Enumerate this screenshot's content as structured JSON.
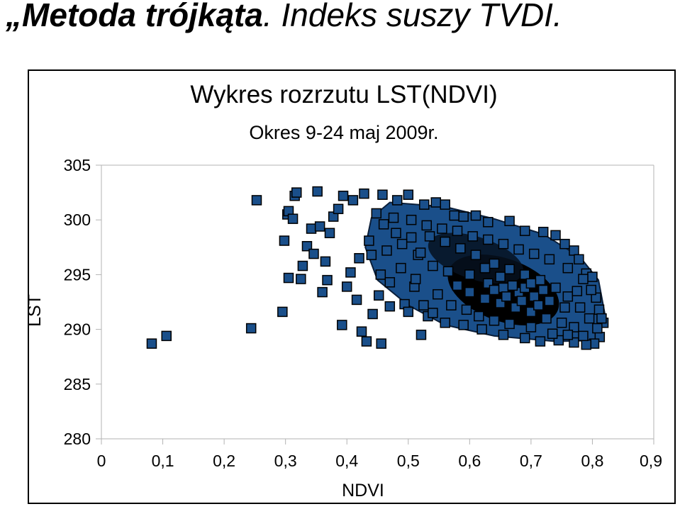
{
  "slide": {
    "title_emphasis": "„Metoda trójkąta",
    "title_rest": ". Indeks suszy TVDI."
  },
  "chart_data": {
    "type": "scatter",
    "title": "Wykres rozrzutu LST(NDVI)",
    "subtitle": "Okres 9-24 maj 2009r.",
    "xlabel": "NDVI",
    "ylabel": "LST",
    "xlim": [
      0,
      0.9
    ],
    "ylim": [
      280,
      305
    ],
    "x_ticks": [
      0,
      0.1,
      0.2,
      0.3,
      0.4,
      0.5,
      0.6,
      0.7,
      0.8,
      0.9
    ],
    "x_tick_labels": [
      "0",
      "0,1",
      "0,2",
      "0,3",
      "0,4",
      "0,5",
      "0,6",
      "0,7",
      "0,8",
      "0,9"
    ],
    "y_ticks": [
      280,
      285,
      290,
      295,
      300,
      305
    ],
    "y_tick_labels": [
      "280",
      "285",
      "290",
      "295",
      "300",
      "305"
    ],
    "grid": {
      "horizontal": false,
      "vertical": false
    },
    "legend": "none",
    "marker": {
      "shape": "square",
      "fill": "#1a4f8a",
      "stroke": "#000000"
    },
    "points": [
      [
        0.082,
        288.7
      ],
      [
        0.106,
        289.4
      ],
      [
        0.244,
        290.1
      ],
      [
        0.253,
        301.8
      ],
      [
        0.295,
        291.6
      ],
      [
        0.298,
        298.1
      ],
      [
        0.303,
        300.5
      ],
      [
        0.305,
        300.8
      ],
      [
        0.305,
        294.7
      ],
      [
        0.312,
        300.1
      ],
      [
        0.315,
        302.2
      ],
      [
        0.318,
        302.5
      ],
      [
        0.325,
        294.6
      ],
      [
        0.328,
        295.8
      ],
      [
        0.335,
        297.6
      ],
      [
        0.342,
        299.2
      ],
      [
        0.346,
        296.9
      ],
      [
        0.352,
        302.6
      ],
      [
        0.356,
        299.4
      ],
      [
        0.36,
        293.4
      ],
      [
        0.365,
        296.2
      ],
      [
        0.368,
        294.5
      ],
      [
        0.372,
        298.8
      ],
      [
        0.378,
        300.3
      ],
      [
        0.386,
        301.0
      ],
      [
        0.392,
        290.4
      ],
      [
        0.394,
        302.2
      ],
      [
        0.4,
        293.9
      ],
      [
        0.406,
        295.2
      ],
      [
        0.41,
        301.8
      ],
      [
        0.416,
        292.7
      ],
      [
        0.42,
        296.5
      ],
      [
        0.424,
        289.8
      ],
      [
        0.428,
        302.4
      ],
      [
        0.432,
        288.9
      ],
      [
        0.436,
        298.1
      ],
      [
        0.442,
        291.4
      ],
      [
        0.448,
        300.6
      ],
      [
        0.452,
        293.1
      ],
      [
        0.456,
        288.7
      ],
      [
        0.458,
        302.3
      ],
      [
        0.465,
        297.2
      ],
      [
        0.47,
        292.1
      ],
      [
        0.476,
        300.2
      ],
      [
        0.482,
        301.8
      ],
      [
        0.488,
        295.6
      ],
      [
        0.494,
        292.3
      ],
      [
        0.5,
        302.3
      ],
      [
        0.505,
        298.4
      ],
      [
        0.51,
        293.9
      ],
      [
        0.516,
        296.8
      ],
      [
        0.521,
        289.5
      ],
      [
        0.526,
        301.4
      ],
      [
        0.532,
        291.2
      ],
      [
        0.545,
        301.6
      ],
      [
        0.56,
        301.4
      ],
      [
        0.575,
        300.4
      ],
      [
        0.59,
        300.3
      ],
      [
        0.61,
        300.4
      ],
      [
        0.63,
        299.8
      ],
      [
        0.665,
        299.9
      ],
      [
        0.69,
        299.0
      ],
      [
        0.72,
        298.9
      ],
      [
        0.74,
        298.6
      ],
      [
        0.755,
        297.8
      ],
      [
        0.77,
        297.2
      ],
      [
        0.778,
        296.4
      ],
      [
        0.79,
        295.1
      ],
      [
        0.8,
        294.8
      ],
      [
        0.806,
        292.9
      ],
      [
        0.811,
        291.8
      ],
      [
        0.818,
        290.6
      ],
      [
        0.812,
        289.3
      ],
      [
        0.803,
        288.7
      ],
      [
        0.79,
        288.6
      ],
      [
        0.77,
        288.8
      ],
      [
        0.745,
        289.0
      ],
      [
        0.715,
        288.9
      ],
      [
        0.69,
        289.2
      ],
      [
        0.655,
        289.5
      ],
      [
        0.62,
        290.0
      ],
      [
        0.59,
        290.4
      ],
      [
        0.56,
        290.6
      ],
      [
        0.54,
        291.5
      ],
      [
        0.525,
        292.2
      ],
      [
        0.52,
        297.0
      ],
      [
        0.535,
        298.5
      ],
      [
        0.56,
        298.0
      ],
      [
        0.585,
        297.4
      ],
      [
        0.61,
        296.8
      ],
      [
        0.64,
        296.0
      ],
      [
        0.665,
        295.5
      ],
      [
        0.69,
        295.0
      ],
      [
        0.715,
        294.5
      ],
      [
        0.74,
        293.8
      ],
      [
        0.76,
        293.0
      ],
      [
        0.78,
        292.0
      ],
      [
        0.795,
        291.0
      ],
      [
        0.58,
        294.0
      ],
      [
        0.6,
        293.4
      ],
      [
        0.625,
        292.8
      ],
      [
        0.65,
        292.4
      ],
      [
        0.675,
        292.0
      ],
      [
        0.7,
        291.6
      ],
      [
        0.725,
        291.0
      ],
      [
        0.75,
        290.6
      ],
      [
        0.77,
        290.2
      ],
      [
        0.54,
        295.8
      ],
      [
        0.565,
        295.3
      ],
      [
        0.6,
        295.0
      ],
      [
        0.63,
        294.2
      ],
      [
        0.655,
        293.8
      ],
      [
        0.68,
        293.4
      ],
      [
        0.705,
        293.0
      ],
      [
        0.73,
        292.6
      ],
      [
        0.755,
        292.0
      ],
      [
        0.46,
        299.6
      ],
      [
        0.48,
        298.8
      ],
      [
        0.505,
        300.0
      ],
      [
        0.53,
        299.5
      ],
      [
        0.555,
        299.2
      ],
      [
        0.58,
        299.0
      ],
      [
        0.605,
        298.5
      ],
      [
        0.63,
        298.2
      ],
      [
        0.655,
        297.8
      ],
      [
        0.68,
        297.3
      ],
      [
        0.705,
        296.9
      ],
      [
        0.73,
        296.4
      ],
      [
        0.76,
        295.6
      ],
      [
        0.785,
        294.6
      ],
      [
        0.44,
        296.8
      ],
      [
        0.455,
        295.0
      ],
      [
        0.47,
        294.3
      ],
      [
        0.49,
        297.8
      ],
      [
        0.5,
        291.6
      ],
      [
        0.512,
        294.6
      ],
      [
        0.548,
        293.2
      ],
      [
        0.57,
        292.2
      ],
      [
        0.595,
        291.8
      ],
      [
        0.615,
        291.2
      ],
      [
        0.64,
        290.8
      ],
      [
        0.665,
        290.5
      ],
      [
        0.7,
        290.2
      ],
      [
        0.735,
        289.6
      ],
      [
        0.76,
        289.5
      ],
      [
        0.785,
        289.4
      ],
      [
        0.808,
        290.1
      ],
      [
        0.815,
        291.0
      ],
      [
        0.798,
        293.6
      ],
      [
        0.775,
        293.5
      ],
      [
        0.65,
        294.8
      ],
      [
        0.67,
        294.0
      ],
      [
        0.69,
        293.8
      ],
      [
        0.712,
        292.2
      ],
      [
        0.66,
        293.0
      ],
      [
        0.64,
        293.6
      ],
      [
        0.685,
        292.6
      ],
      [
        0.7,
        294.2
      ],
      [
        0.625,
        295.6
      ],
      [
        0.72,
        293.6
      ]
    ]
  }
}
